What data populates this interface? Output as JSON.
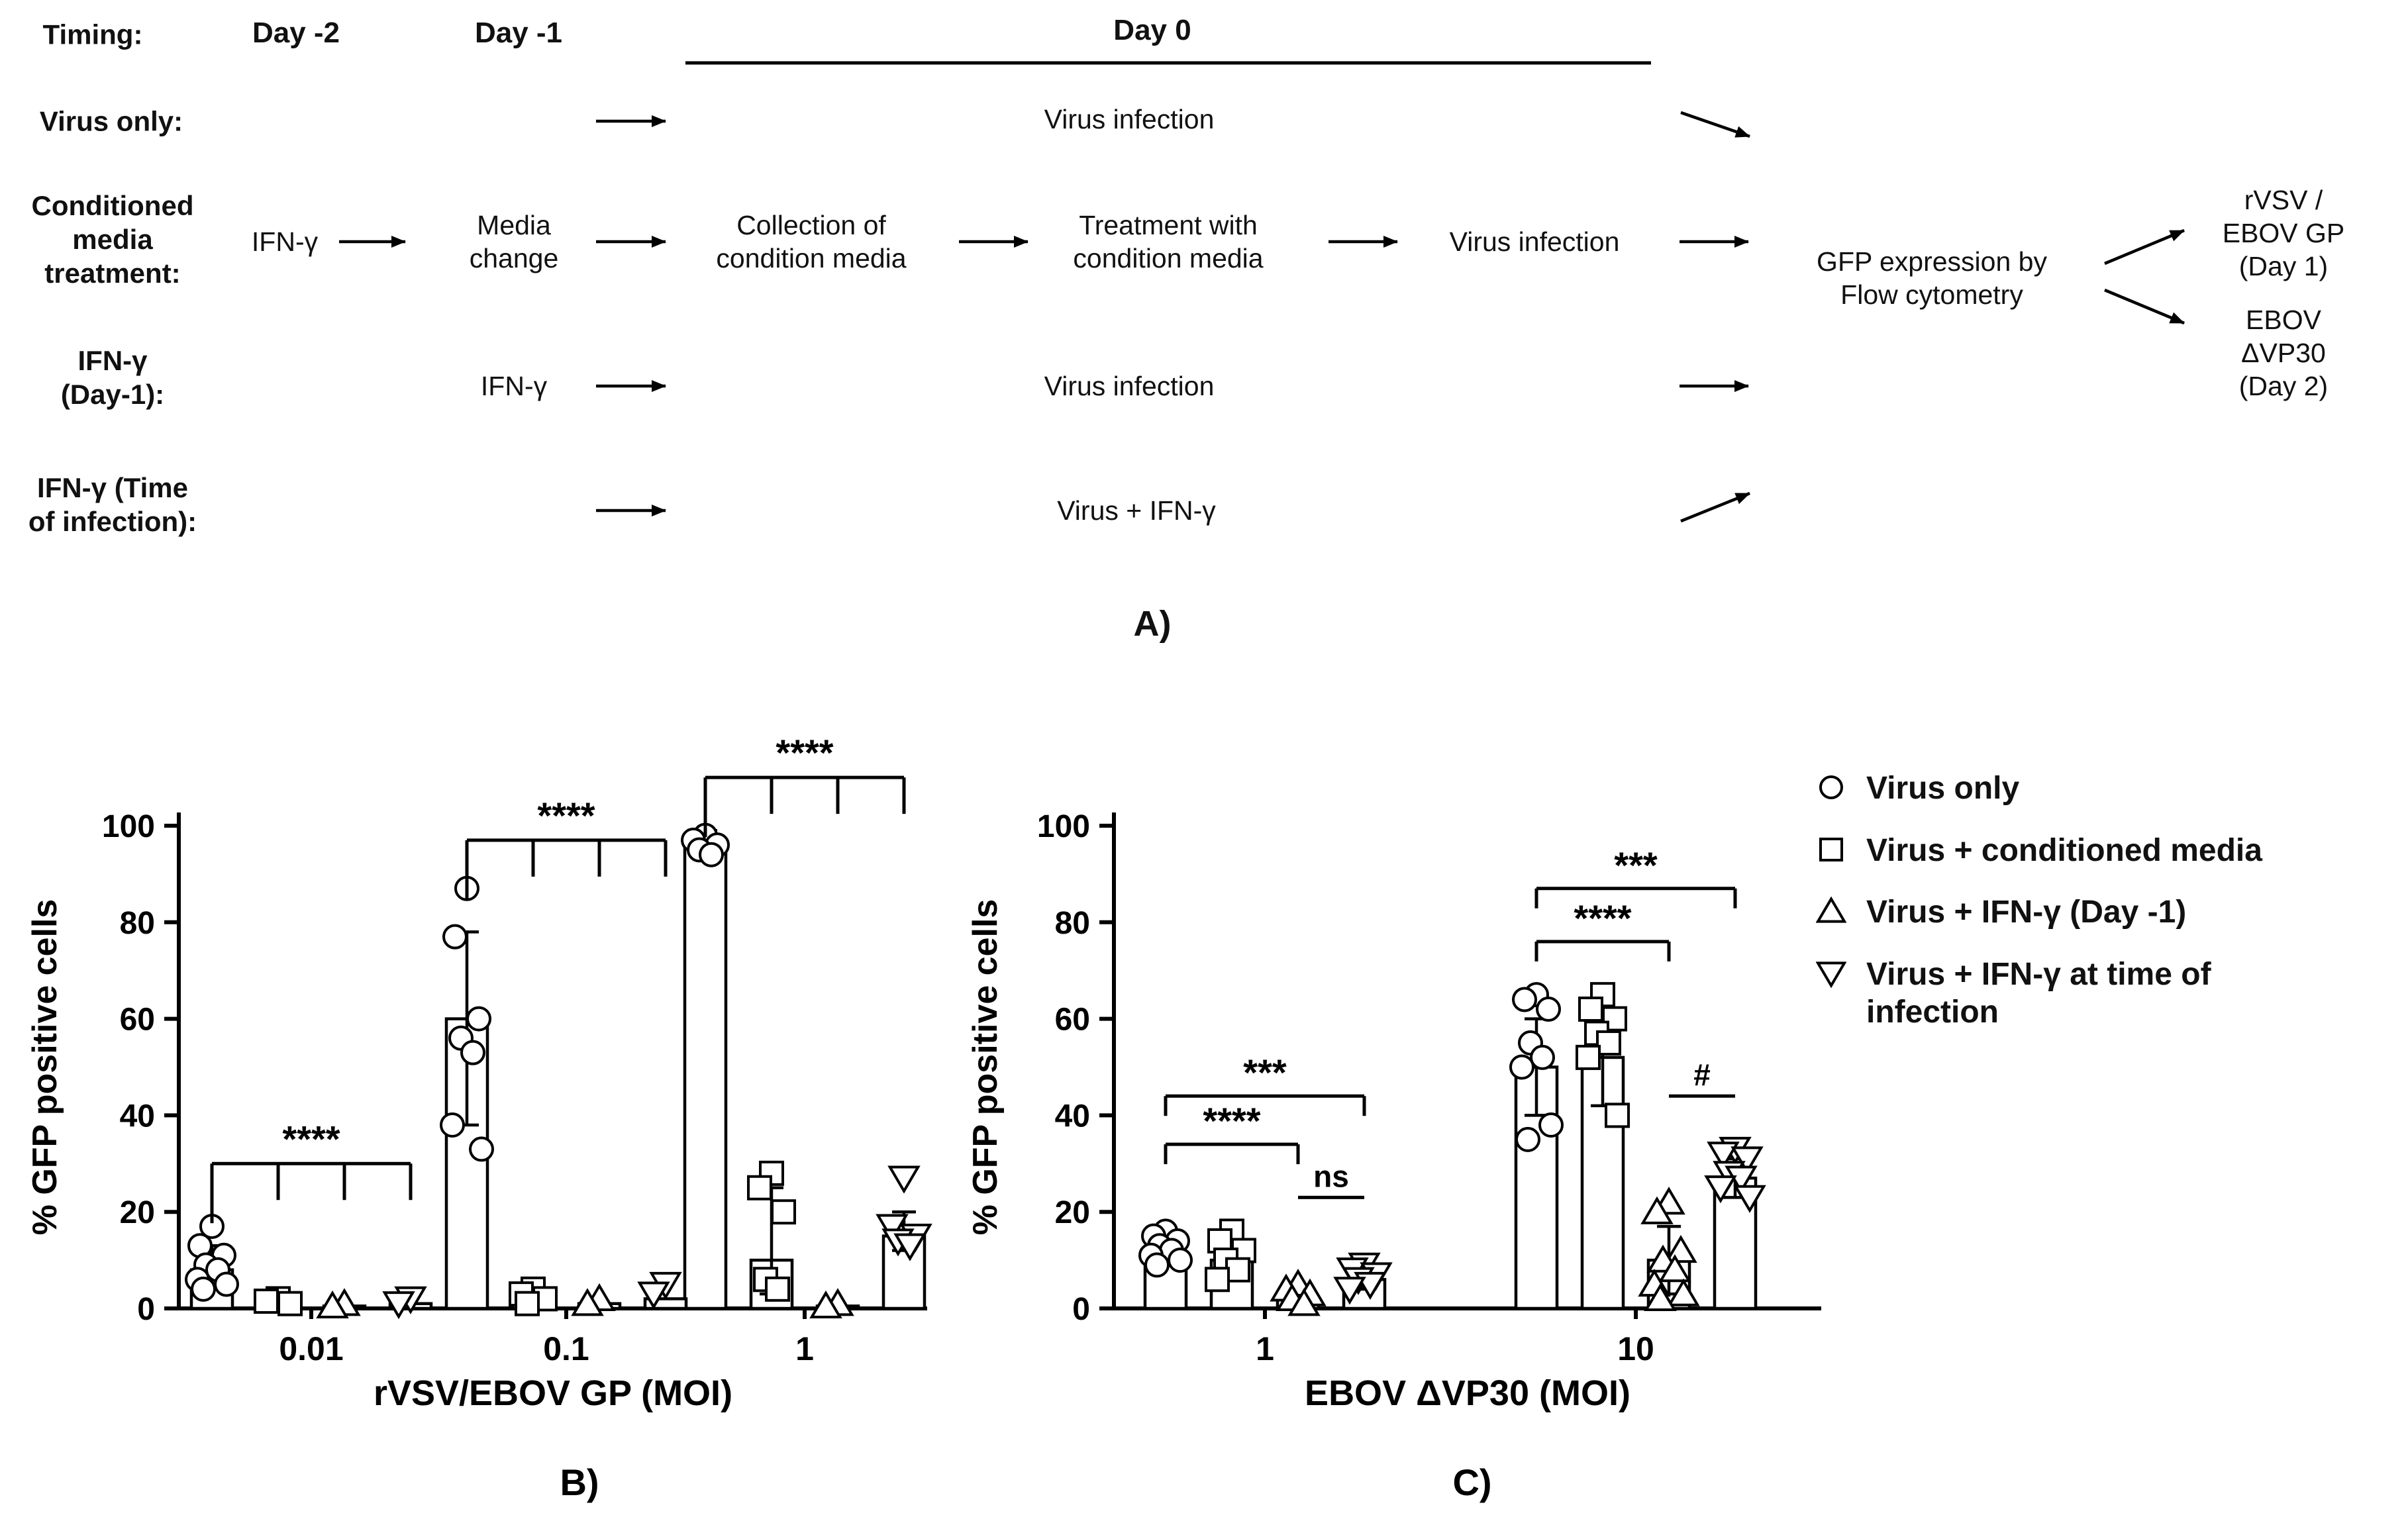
{
  "diagram": {
    "timing_label": "Timing:",
    "day_minus_2": "Day -2",
    "day_minus_1": "Day -1",
    "day_0": "Day 0",
    "virus_only_label": "Virus only:",
    "virus_only_step": "Virus infection",
    "conditioned_label": "Conditioned\nmedia\ntreatment:",
    "conditioned_steps": {
      "ifn": "IFN-γ",
      "media_change": "Media\nchange",
      "collection": "Collection of\ncondition media",
      "treatment": "Treatment with\ncondition media",
      "virus_infection": "Virus infection"
    },
    "gfp_readout": "GFP expression by\nFlow cytometry",
    "output_1": "rVSV / EBOV GP\n(Day 1)",
    "output_2": "EBOV ΔVP30\n(Day 2)",
    "ifn_day1_label": "IFN-γ\n(Day-1):",
    "ifn_day1_ifn": "IFN-γ",
    "ifn_day1_step": "Virus infection",
    "ifn_toi_label": "IFN-γ (Time\nof infection):",
    "ifn_toi_step": "Virus + IFN-γ",
    "panel_label": "A)"
  },
  "legend": {
    "items": [
      {
        "marker": "circle",
        "label": "Virus only"
      },
      {
        "marker": "square",
        "label": "Virus + conditioned media"
      },
      {
        "marker": "triangle",
        "label": "Virus + IFN-γ (Day -1)"
      },
      {
        "marker": "triangle-down",
        "label": "Virus + IFN-γ at time of infection"
      }
    ]
  },
  "chart_data": [
    {
      "type": "bar",
      "panel": "B)",
      "ylabel": "% GFP positive cells",
      "xlabel": "rVSV/EBOV GP (MOI)",
      "ylim": [
        0,
        100
      ],
      "yticks": [
        0,
        20,
        40,
        60,
        80,
        100
      ],
      "categories": [
        "0.01",
        "0.1",
        "1"
      ],
      "series": [
        {
          "name": "Virus only",
          "marker": "circle",
          "bars": [
            8,
            60,
            96
          ],
          "errors": [
            [
              5,
              13
            ],
            [
              38,
              78
            ],
            [
              93,
              99
            ]
          ],
          "points": [
            [
              17,
              13,
              11,
              9,
              8,
              6,
              5,
              4
            ],
            [
              87,
              77,
              60,
              56,
              53,
              38,
              33
            ],
            [
              98,
              97,
              96,
              95,
              94
            ]
          ]
        },
        {
          "name": "Virus + conditioned media",
          "marker": "square",
          "bars": [
            1,
            2,
            10
          ],
          "errors": [
            null,
            null,
            [
              3,
              25
            ]
          ],
          "points": [
            [
              2,
              1.5,
              1
            ],
            [
              4,
              3,
              2,
              1
            ],
            [
              28,
              25,
              20,
              6,
              4
            ]
          ]
        },
        {
          "name": "Virus + IFN-γ (Day -1)",
          "marker": "triangle",
          "bars": [
            0.5,
            1,
            0.5
          ],
          "errors": [
            null,
            null,
            null
          ],
          "points": [
            [
              1,
              0.5
            ],
            [
              2,
              1
            ],
            [
              1,
              0.5
            ]
          ]
        },
        {
          "name": "Virus + IFN-γ at time of infection",
          "marker": "triangle-down",
          "bars": [
            1,
            2,
            15
          ],
          "errors": [
            null,
            null,
            [
              12,
              20
            ]
          ],
          "points": [
            [
              2,
              1
            ],
            [
              5,
              3
            ],
            [
              27,
              17,
              15,
              14,
              13
            ]
          ]
        }
      ],
      "significance": [
        {
          "group": 0,
          "label": "****",
          "style": "comb",
          "level": 30
        },
        {
          "group": 1,
          "label": "****",
          "style": "comb",
          "level": 97
        },
        {
          "group": 2,
          "label": "****",
          "style": "comb",
          "level": 110
        }
      ]
    },
    {
      "type": "bar",
      "panel": "C)",
      "ylabel": "% GFP positive cells",
      "xlabel": "EBOV ΔVP30 (MOI)",
      "ylim": [
        0,
        100
      ],
      "yticks": [
        0,
        20,
        40,
        60,
        80,
        100
      ],
      "categories": [
        "1",
        "10"
      ],
      "series": [
        {
          "name": "Virus only",
          "marker": "circle",
          "bars": [
            11,
            50
          ],
          "errors": [
            [
              9,
              14
            ],
            [
              40,
              60
            ]
          ],
          "points": [
            [
              16,
              15,
              14,
              13,
              12,
              11,
              10,
              9
            ],
            [
              65,
              64,
              62,
              55,
              52,
              50,
              38,
              35
            ]
          ]
        },
        {
          "name": "Virus + conditioned media",
          "marker": "square",
          "bars": [
            10,
            52
          ],
          "errors": [
            [
              6,
              14
            ],
            [
              42,
              62
            ]
          ],
          "points": [
            [
              16,
              14,
              12,
              10,
              8,
              6
            ],
            [
              65,
              62,
              60,
              57,
              55,
              52,
              40
            ]
          ]
        },
        {
          "name": "Virus + IFN-γ (Day -1)",
          "marker": "triangle",
          "bars": [
            2,
            10
          ],
          "errors": [
            null,
            [
              3,
              17
            ]
          ],
          "points": [
            [
              5,
              4,
              3,
              2,
              1
            ],
            [
              22,
              20,
              12,
              10,
              8,
              5,
              3,
              2
            ]
          ]
        },
        {
          "name": "Virus + IFN-γ at time of infection",
          "marker": "triangle-down",
          "bars": [
            6,
            27
          ],
          "errors": [
            [
              4,
              8
            ],
            [
              23,
              31
            ]
          ],
          "points": [
            [
              9,
              8,
              7,
              6,
              5,
              4
            ],
            [
              33,
              32,
              31,
              28,
              27,
              25,
              23
            ]
          ]
        }
      ],
      "significance": [
        {
          "group": 0,
          "label": "****",
          "style": "span",
          "from": 0,
          "to": 2,
          "level": 34
        },
        {
          "group": 0,
          "label": "***",
          "style": "span",
          "from": 0,
          "to": 3,
          "level": 44
        },
        {
          "group": 0,
          "label": "ns",
          "style": "line",
          "from": 2,
          "to": 3,
          "level": 23
        },
        {
          "group": 1,
          "label": "****",
          "style": "span",
          "from": 0,
          "to": 2,
          "level": 76
        },
        {
          "group": 1,
          "label": "***",
          "style": "span",
          "from": 0,
          "to": 3,
          "level": 87
        },
        {
          "group": 1,
          "label": "#",
          "style": "line",
          "from": 2,
          "to": 3,
          "level": 44
        }
      ]
    }
  ]
}
